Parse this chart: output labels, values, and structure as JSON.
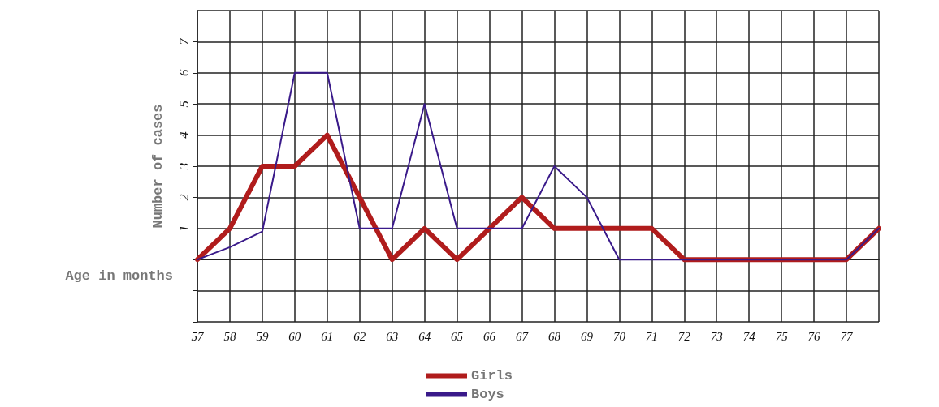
{
  "chart_data": {
    "type": "line",
    "xlabel": "Age in months",
    "ylabel": "Number of cases",
    "categories": [
      "57",
      "58",
      "59",
      "60",
      "61",
      "62",
      "63",
      "64",
      "65",
      "66",
      "67",
      "68",
      "69",
      "70",
      "71",
      "72",
      "73",
      "74",
      "75",
      "76",
      "77",
      null
    ],
    "series": [
      {
        "name": "Girls",
        "color": "#b01c1c",
        "values": [
          0,
          1,
          3,
          3,
          4,
          2,
          0,
          1,
          0,
          1,
          2,
          1,
          1,
          1,
          1,
          0,
          0,
          0,
          0,
          0,
          0,
          1
        ]
      },
      {
        "name": "Boys",
        "color": "#3a1a8a",
        "values": [
          0,
          0.4,
          0.9,
          6,
          6,
          1,
          1,
          5,
          1,
          1,
          1,
          3,
          2,
          0,
          0,
          0,
          0,
          0,
          0,
          0,
          0,
          1
        ]
      }
    ],
    "ylim": [
      -2,
      8
    ],
    "yticks": [
      {
        "value": -2,
        "label": null
      },
      {
        "value": -1,
        "label": null
      },
      {
        "value": 0,
        "label": null
      },
      1,
      2,
      3,
      4,
      5,
      6,
      7,
      {
        "value": 8,
        "label": null
      }
    ],
    "grid": true,
    "legend": "bottom",
    "marker": "none",
    "line_style": "solid"
  }
}
